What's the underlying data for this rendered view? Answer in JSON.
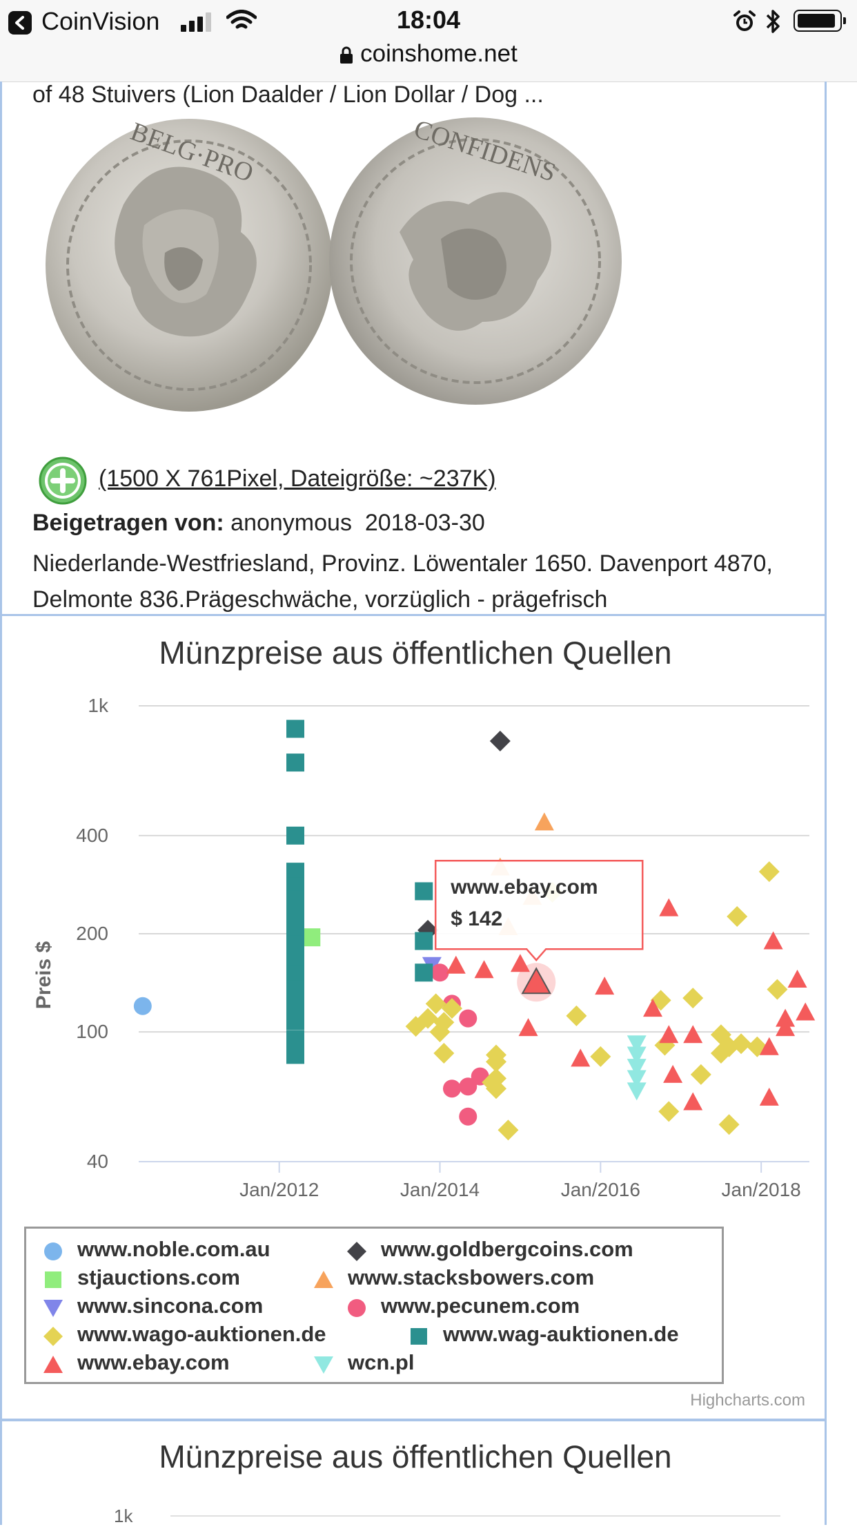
{
  "status_bar": {
    "back_app": "CoinVision",
    "time": "18:04",
    "url": "coinshome.net"
  },
  "coin": {
    "title_fragment": "of 48 Stuivers (Lion Daalder / Lion Dollar / Dog ...",
    "image_info": "(1500 X 761Pixel, Dateigröße: ~237K)",
    "contributed_label": "Beigetragen von:",
    "contributed_value": "anonymous  2018-03-30",
    "description": "Niederlande-Westfriesland, Provinz. Löwentaler 1650. Davenport 4870, Delmonte 836.Prägeschwäche, vorzüglich - prägefrisch"
  },
  "chart_data": {
    "type": "scatter",
    "title": "Münzpreise aus öffentlichen Quellen",
    "ylabel": "Preis $",
    "xlabel": "",
    "yscale": "log",
    "ylim": [
      40,
      1000
    ],
    "yticks": [
      40,
      100,
      200,
      400,
      1000
    ],
    "ytick_labels": [
      "40",
      "100",
      "200",
      "400",
      "1k"
    ],
    "xlim": [
      2010.25,
      2018.6
    ],
    "xticks": [
      2012,
      2014,
      2016,
      2018
    ],
    "xtick_labels": [
      "Jan/2012",
      "Jan/2014",
      "Jan/2016",
      "Jan/2018"
    ],
    "grid": true,
    "legend_position": "bottom",
    "tooltip": {
      "series": "www.ebay.com",
      "label": "$ 142",
      "x": 2015.2,
      "y": 142
    },
    "credits": "Highcharts.com",
    "series": [
      {
        "name": "www.noble.com.au",
        "color": "#7cb5ec",
        "symbol": "circle",
        "points": [
          [
            2010.3,
            120
          ]
        ]
      },
      {
        "name": "www.goldbergcoins.com",
        "color": "#434348",
        "symbol": "diamond",
        "points": [
          [
            2014.75,
            780
          ],
          [
            2013.85,
            205
          ]
        ]
      },
      {
        "name": "stjauctions.com",
        "color": "#90ed7d",
        "symbol": "square",
        "points": [
          [
            2012.4,
            195
          ]
        ]
      },
      {
        "name": "www.stacksbowers.com",
        "color": "#f7a35c",
        "symbol": "triangle",
        "points": [
          [
            2015.3,
            440
          ],
          [
            2014.75,
            320
          ],
          [
            2015.15,
            260
          ],
          [
            2014.85,
            210
          ]
        ]
      },
      {
        "name": "www.sincona.com",
        "color": "#8085e9",
        "symbol": "triangle-down",
        "points": [
          [
            2013.9,
            160
          ]
        ]
      },
      {
        "name": "www.pecunem.com",
        "color": "#f15c80",
        "symbol": "circle",
        "points": [
          [
            2014.0,
            152
          ],
          [
            2014.15,
            122
          ],
          [
            2014.35,
            110
          ],
          [
            2014.5,
            73
          ],
          [
            2014.35,
            68
          ],
          [
            2014.15,
            67
          ],
          [
            2014.35,
            55
          ]
        ]
      },
      {
        "name": "www.wago-auktionen.de",
        "color": "#e4d354",
        "symbol": "diamond",
        "points": [
          [
            2013.7,
            104
          ],
          [
            2013.85,
            110
          ],
          [
            2013.95,
            122
          ],
          [
            2014.0,
            100
          ],
          [
            2014.05,
            107
          ],
          [
            2014.15,
            118
          ],
          [
            2014.05,
            86
          ],
          [
            2014.7,
            85
          ],
          [
            2014.7,
            81
          ],
          [
            2014.7,
            72
          ],
          [
            2014.65,
            70
          ],
          [
            2014.7,
            67
          ],
          [
            2014.85,
            50
          ],
          [
            2015.4,
            268
          ],
          [
            2015.7,
            112
          ],
          [
            2016.0,
            84
          ],
          [
            2016.75,
            125
          ],
          [
            2016.8,
            91
          ],
          [
            2016.85,
            57
          ],
          [
            2017.15,
            127
          ],
          [
            2017.25,
            74
          ],
          [
            2017.5,
            98
          ],
          [
            2017.6,
            90
          ],
          [
            2017.5,
            86
          ],
          [
            2017.6,
            52
          ],
          [
            2017.75,
            92
          ],
          [
            2017.95,
            90
          ],
          [
            2017.7,
            226
          ],
          [
            2018.1,
            310
          ],
          [
            2018.2,
            135
          ]
        ]
      },
      {
        "name": "www.wag-auktionen.de",
        "color": "#2b908f",
        "symbol": "square",
        "points": [
          [
            2012.2,
            850
          ],
          [
            2012.2,
            670
          ],
          [
            2012.2,
            400
          ],
          [
            2012.2,
            310
          ],
          [
            2012.2,
            280
          ],
          [
            2012.2,
            255
          ],
          [
            2012.2,
            230
          ],
          [
            2012.2,
            205
          ],
          [
            2012.2,
            185
          ],
          [
            2012.2,
            165
          ],
          [
            2012.2,
            150
          ],
          [
            2012.2,
            135
          ],
          [
            2012.2,
            120
          ],
          [
            2012.2,
            108
          ],
          [
            2012.2,
            95
          ],
          [
            2012.2,
            85
          ],
          [
            2013.8,
            270
          ],
          [
            2013.8,
            190
          ],
          [
            2013.8,
            152
          ]
        ]
      },
      {
        "name": "www.ebay.com",
        "color": "#f45b5b",
        "symbol": "triangle",
        "points": [
          [
            2014.2,
            160
          ],
          [
            2014.55,
            155
          ],
          [
            2015.0,
            162
          ],
          [
            2015.2,
            142
          ],
          [
            2015.1,
            103
          ],
          [
            2015.75,
            83
          ],
          [
            2016.05,
            138
          ],
          [
            2016.65,
            118
          ],
          [
            2016.85,
            98
          ],
          [
            2016.85,
            240
          ],
          [
            2016.9,
            74
          ],
          [
            2017.15,
            98
          ],
          [
            2017.15,
            61
          ],
          [
            2018.1,
            90
          ],
          [
            2018.15,
            190
          ],
          [
            2018.1,
            63
          ],
          [
            2018.3,
            110
          ],
          [
            2018.3,
            103
          ],
          [
            2018.45,
            145
          ],
          [
            2018.55,
            115
          ]
        ]
      },
      {
        "name": "wcn.pl",
        "color": "#91e8e1",
        "symbol": "triangle-down",
        "points": [
          [
            2016.45,
            92
          ],
          [
            2016.45,
            85
          ],
          [
            2016.45,
            78
          ],
          [
            2016.45,
            72
          ],
          [
            2016.45,
            66
          ]
        ]
      }
    ]
  },
  "chart2": {
    "title": "Münzpreise aus öffentlichen Quellen",
    "first_tick": "1k"
  }
}
